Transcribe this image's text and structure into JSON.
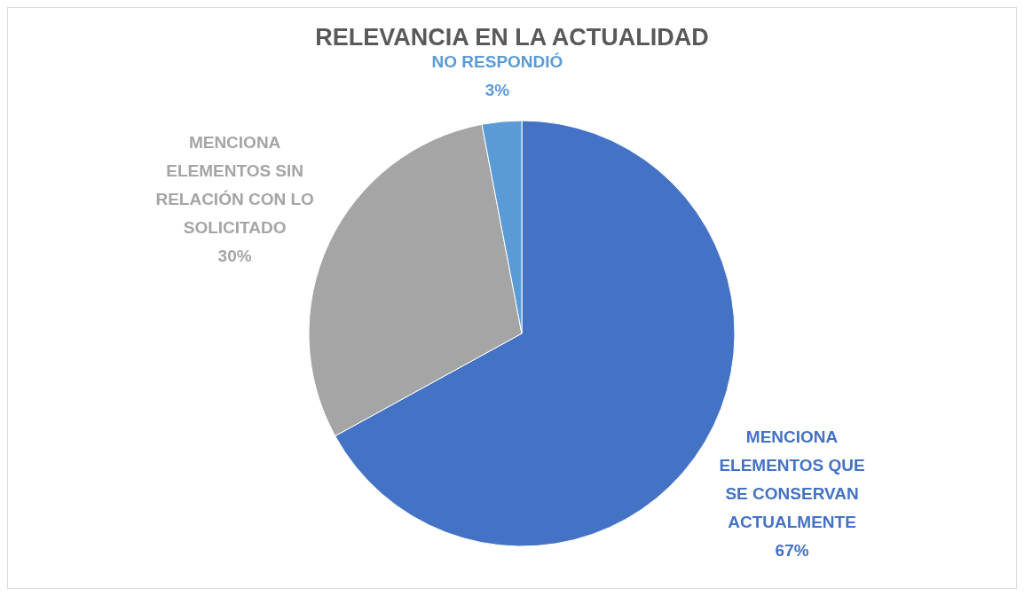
{
  "chart_data": {
    "type": "pie",
    "title": "RELEVANCIA EN LA ACTUALIDAD",
    "categories": [
      "MENCIONA ELEMENTOS QUE SE CONSERVAN ACTUALMENTE",
      "MENCIONA ELEMENTOS SIN RELACIÓN CON LO SOLICITADO",
      "NO RESPONDIÓ"
    ],
    "values": [
      67,
      30,
      3
    ],
    "value_labels": [
      "67%",
      "30%",
      "3%"
    ],
    "colors": [
      "#4472c4",
      "#a5a5a5",
      "#5b9bd5"
    ]
  }
}
